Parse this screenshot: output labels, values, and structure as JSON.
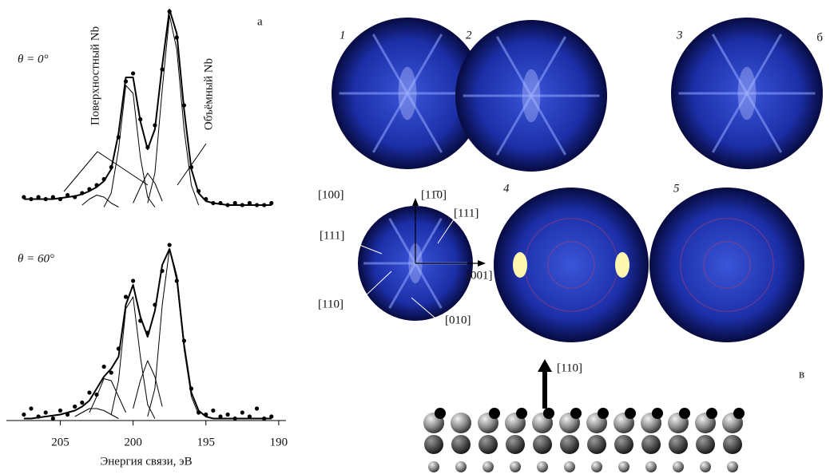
{
  "chart_data": [
    {
      "type": "line",
      "title": "θ = 0°",
      "annotations": [
        "Поверхностный Nb",
        "Объёмный Nb"
      ],
      "x": [
        207.5,
        207,
        206.5,
        206,
        205.5,
        205,
        204.5,
        204,
        203.5,
        203,
        202.5,
        202,
        201.5,
        201,
        200.5,
        200,
        199.5,
        199,
        198.5,
        198,
        197.5,
        197,
        196.5,
        196,
        195.5,
        195,
        194.5,
        194,
        193.5,
        193,
        192.5,
        192,
        191.5,
        191,
        190.5
      ],
      "xlim": [
        208.7,
        189.5
      ],
      "ylim": [
        0,
        100
      ],
      "x_axis": false,
      "series": [
        {
          "color": "#000000",
          "style": "points",
          "values": [
            6,
            5,
            6,
            5,
            6,
            5,
            7,
            6,
            8,
            10,
            12,
            15,
            21,
            36,
            64,
            68,
            45,
            31,
            42,
            70,
            99,
            86,
            52,
            21,
            9,
            5,
            3,
            3,
            2,
            3,
            2,
            3,
            2,
            2,
            3
          ]
        },
        {
          "color": "#000000",
          "style": "line",
          "width": 2,
          "values": [
            5,
            5,
            5,
            5,
            5,
            5.5,
            6,
            6.5,
            7.5,
            9,
            11,
            14,
            20,
            38,
            66,
            66,
            44,
            30,
            40,
            72,
            100,
            88,
            50,
            20,
            8,
            4,
            3,
            2.5,
            2,
            2,
            2,
            2,
            2,
            2,
            2
          ]
        },
        {
          "color": "#000000",
          "style": "line",
          "width": 1,
          "values": [
            null,
            null,
            null,
            null,
            null,
            null,
            null,
            null,
            null,
            null,
            null,
            1,
            8,
            30,
            62,
            58,
            26,
            6,
            1,
            null,
            null,
            null,
            null,
            null,
            null,
            null,
            null,
            null,
            null,
            null,
            null,
            null,
            null,
            null,
            null
          ]
        },
        {
          "color": "#000000",
          "style": "line",
          "width": 1,
          "values": [
            null,
            null,
            null,
            null,
            null,
            null,
            null,
            null,
            null,
            null,
            null,
            null,
            null,
            null,
            null,
            null,
            null,
            3,
            18,
            60,
            97,
            80,
            40,
            12,
            2,
            null,
            null,
            null,
            null,
            null,
            null,
            null,
            null,
            null,
            null
          ]
        },
        {
          "color": "#000000",
          "style": "line",
          "width": 1,
          "values": [
            null,
            null,
            null,
            null,
            null,
            null,
            null,
            null,
            null,
            null,
            null,
            null,
            null,
            null,
            null,
            3,
            11,
            18,
            13,
            4,
            null,
            null,
            null,
            null,
            null,
            null,
            null,
            null,
            null,
            null,
            null,
            null,
            null,
            null,
            null
          ]
        },
        {
          "color": "#000000",
          "style": "line",
          "width": 1,
          "values": [
            null,
            null,
            null,
            null,
            null,
            null,
            null,
            null,
            2,
            5,
            7,
            6,
            3,
            1,
            null,
            null,
            null,
            null,
            null,
            null,
            null,
            null,
            null,
            null,
            null,
            null,
            null,
            null,
            null,
            null,
            null,
            null,
            null,
            null,
            null
          ]
        }
      ]
    },
    {
      "type": "line",
      "title": "θ = 60°",
      "xlabel": "Энергия связи, эВ",
      "x": [
        207.5,
        207,
        206.5,
        206,
        205.5,
        205,
        204.5,
        204,
        203.5,
        203,
        202.5,
        202,
        201.5,
        201,
        200.5,
        200,
        199.5,
        199,
        198.5,
        198,
        197.5,
        197,
        196.5,
        196,
        195.5,
        195,
        194.5,
        194,
        193.5,
        193,
        192.5,
        192,
        191.5,
        191,
        190.5
      ],
      "xlim": [
        208.7,
        189.5
      ],
      "ylim": [
        0,
        100
      ],
      "x_axis": true,
      "xticks": [
        205,
        200,
        195,
        190
      ],
      "series": [
        {
          "color": "#000000",
          "style": "points",
          "values": [
            3,
            6,
            2,
            4,
            1,
            5,
            3,
            7,
            9,
            14,
            13,
            27,
            24,
            36,
            62,
            70,
            50,
            44,
            58,
            75,
            88,
            70,
            40,
            16,
            4,
            3,
            5,
            2,
            3,
            1,
            4,
            2,
            6,
            1,
            2
          ]
        },
        {
          "color": "#000000",
          "style": "line",
          "width": 2,
          "values": [
            1,
            1,
            1.5,
            2,
            2.5,
            3,
            4,
            5,
            7,
            10,
            16,
            22,
            26,
            32,
            58,
            68,
            52,
            42,
            55,
            78,
            86,
            72,
            38,
            14,
            5,
            2,
            1,
            1,
            1,
            1,
            1,
            1,
            1,
            1,
            1
          ]
        },
        {
          "color": "#000000",
          "style": "line",
          "width": 1,
          "values": [
            null,
            null,
            null,
            null,
            null,
            null,
            null,
            null,
            null,
            null,
            null,
            null,
            3,
            20,
            56,
            62,
            32,
            8,
            1,
            null,
            null,
            null,
            null,
            null,
            null,
            null,
            null,
            null,
            null,
            null,
            null,
            null,
            null,
            null,
            null
          ]
        },
        {
          "color": "#000000",
          "style": "line",
          "width": 1,
          "values": [
            null,
            null,
            null,
            null,
            null,
            null,
            null,
            null,
            null,
            null,
            null,
            null,
            null,
            null,
            null,
            null,
            null,
            2,
            16,
            58,
            86,
            70,
            36,
            12,
            3,
            null,
            null,
            null,
            null,
            null,
            null,
            null,
            null,
            null,
            null
          ]
        },
        {
          "color": "#000000",
          "style": "line",
          "width": 1,
          "values": [
            null,
            null,
            null,
            null,
            null,
            null,
            null,
            null,
            null,
            null,
            null,
            null,
            null,
            null,
            null,
            6,
            20,
            30,
            22,
            7,
            null,
            null,
            null,
            null,
            null,
            null,
            null,
            null,
            null,
            null,
            null,
            null,
            null,
            null,
            null
          ]
        },
        {
          "color": "#000000",
          "style": "line",
          "width": 1,
          "values": [
            null,
            null,
            null,
            null,
            null,
            null,
            null,
            null,
            null,
            4,
            12,
            21,
            20,
            12,
            4,
            null,
            null,
            null,
            null,
            null,
            null,
            null,
            null,
            null,
            null,
            null,
            null,
            null,
            null,
            null,
            null,
            null,
            null,
            null,
            null
          ]
        },
        {
          "color": "#000000",
          "style": "line",
          "width": 1,
          "values": [
            null,
            null,
            null,
            null,
            null,
            null,
            null,
            2,
            4,
            6,
            6,
            5,
            3,
            1,
            null,
            null,
            null,
            null,
            null,
            null,
            null,
            null,
            null,
            null,
            null,
            null,
            null,
            null,
            null,
            null,
            null,
            null,
            null,
            null,
            null
          ]
        }
      ]
    }
  ],
  "panel_a": "а",
  "patterns": {
    "label": "б",
    "numbers": [
      "1",
      "2",
      "3",
      "4",
      "5"
    ],
    "directions": [
      "[100]",
      "[11̄0]",
      "[111]",
      "[111]",
      "[001]",
      "[110]",
      "[010]"
    ]
  },
  "structure": {
    "label": "в",
    "direction": "[110]"
  }
}
